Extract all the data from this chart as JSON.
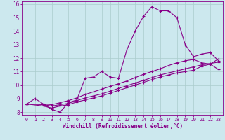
{
  "xlabel": "Windchill (Refroidissement éolien,°C)",
  "bg_color": "#cce8ee",
  "line_color": "#880088",
  "grid_color": "#aacccc",
  "xlim": [
    -0.5,
    23.5
  ],
  "ylim": [
    7.8,
    16.2
  ],
  "xticks": [
    0,
    1,
    2,
    3,
    4,
    5,
    6,
    7,
    8,
    9,
    10,
    11,
    12,
    13,
    14,
    15,
    16,
    17,
    18,
    19,
    20,
    21,
    22,
    23
  ],
  "yticks": [
    8,
    9,
    10,
    11,
    12,
    13,
    14,
    15,
    16
  ],
  "line1_x": [
    0,
    1,
    2,
    3,
    4,
    5,
    6,
    7,
    8,
    9,
    10,
    11,
    12,
    13,
    14,
    15,
    16,
    17,
    18,
    19,
    20,
    21,
    22,
    23
  ],
  "line1_y": [
    8.6,
    9.0,
    8.6,
    8.2,
    8.0,
    8.7,
    8.9,
    10.5,
    10.6,
    11.0,
    10.6,
    10.5,
    12.6,
    14.0,
    15.1,
    15.8,
    15.5,
    15.5,
    15.0,
    13.0,
    12.1,
    12.3,
    12.4,
    11.8
  ],
  "line2_x": [
    0,
    2,
    3,
    4,
    5,
    6,
    7,
    8,
    9,
    10,
    11,
    12,
    13,
    14,
    15,
    16,
    17,
    18,
    19,
    20,
    21,
    22,
    23
  ],
  "line2_y": [
    8.6,
    8.6,
    8.55,
    8.7,
    8.85,
    9.05,
    9.3,
    9.5,
    9.7,
    9.9,
    10.1,
    10.3,
    10.55,
    10.8,
    11.0,
    11.2,
    11.45,
    11.65,
    11.8,
    11.9,
    11.65,
    11.55,
    11.15
  ],
  "line3_x": [
    0,
    2,
    3,
    4,
    5,
    6,
    7,
    8,
    9,
    10,
    11,
    12,
    13,
    14,
    15,
    16,
    17,
    18,
    19,
    20,
    21,
    22,
    23
  ],
  "line3_y": [
    8.6,
    8.55,
    8.45,
    8.55,
    8.65,
    8.85,
    9.05,
    9.2,
    9.35,
    9.55,
    9.75,
    9.95,
    10.15,
    10.35,
    10.55,
    10.75,
    10.9,
    11.05,
    11.2,
    11.35,
    11.5,
    11.6,
    11.7
  ],
  "line4_x": [
    0,
    2,
    3,
    4,
    5,
    6,
    7,
    8,
    9,
    10,
    11,
    12,
    13,
    14,
    15,
    16,
    17,
    18,
    19,
    20,
    21,
    22,
    23
  ],
  "line4_y": [
    8.6,
    8.45,
    8.3,
    8.45,
    8.55,
    8.75,
    8.9,
    9.05,
    9.2,
    9.4,
    9.6,
    9.8,
    10.0,
    10.2,
    10.4,
    10.6,
    10.75,
    10.9,
    11.0,
    11.1,
    11.4,
    11.55,
    11.95
  ]
}
